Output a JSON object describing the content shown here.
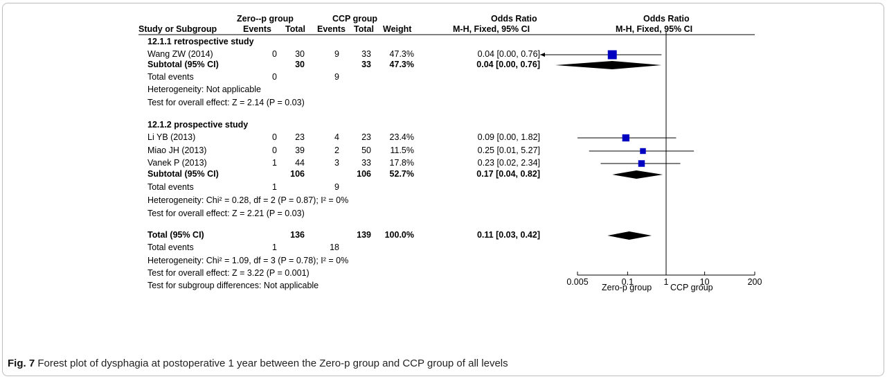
{
  "headers": {
    "group1": "Zero--p group",
    "group2": "CCP group",
    "or_num": "Odds Ratio",
    "or_plot": "Odds Ratio",
    "study": "Study or Subgroup",
    "events1": "Events",
    "total1": "Total",
    "events2": "Events",
    "total2": "Total",
    "weight": "Weight",
    "or_num_sub": "M-H, Fixed, 95% CI",
    "or_plot_sub": "M-H, Fixed, 95% CI"
  },
  "subgroups": [
    {
      "title": "12.1.1 retrospective study",
      "studies": [
        {
          "name": "Wang ZW (2014)",
          "e1": "0",
          "t1": "30",
          "e2": "9",
          "t2": "33",
          "weight": "47.3%",
          "ci": "0.04 [0.00, 0.76]"
        }
      ],
      "subtotal": {
        "label": "Subtotal (95% CI)",
        "t1": "30",
        "t2": "33",
        "weight": "47.3%",
        "ci": "0.04 [0.00, 0.76]"
      },
      "total_events": {
        "label": "Total events",
        "e1": "0",
        "e2": "9"
      },
      "heterogeneity": "Heterogeneity: Not applicable",
      "overall": "Test for overall effect: Z = 2.14 (P = 0.03)"
    },
    {
      "title": "12.1.2 prospective study",
      "studies": [
        {
          "name": "Li YB (2013)",
          "e1": "0",
          "t1": "23",
          "e2": "4",
          "t2": "23",
          "weight": "23.4%",
          "ci": "0.09 [0.00, 1.82]"
        },
        {
          "name": "Miao JH (2013)",
          "e1": "0",
          "t1": "39",
          "e2": "2",
          "t2": "50",
          "weight": "11.5%",
          "ci": "0.25 [0.01, 5.27]"
        },
        {
          "name": "Vanek P (2013)",
          "e1": "1",
          "t1": "44",
          "e2": "3",
          "t2": "33",
          "weight": "17.8%",
          "ci": "0.23 [0.02, 2.34]"
        }
      ],
      "subtotal": {
        "label": "Subtotal (95% CI)",
        "t1": "106",
        "t2": "106",
        "weight": "52.7%",
        "ci": "0.17 [0.04, 0.82]"
      },
      "total_events": {
        "label": "Total events",
        "e1": "1",
        "e2": "9"
      },
      "heterogeneity": "Heterogeneity: Chi² = 0.28, df = 2 (P = 0.87); I² = 0%",
      "overall": "Test for overall effect: Z = 2.21 (P = 0.03)"
    }
  ],
  "total": {
    "label": "Total (95% CI)",
    "t1": "136",
    "t2": "139",
    "weight": "100.0%",
    "ci": "0.11 [0.03, 0.42]",
    "events_label": "Total events",
    "e1": "1",
    "e2": "18",
    "heterogeneity": "Heterogeneity: Chi² = 1.09, df = 3 (P = 0.78); I² = 0%",
    "overall": "Test for overall effect: Z = 3.22 (P = 0.001)",
    "subgroup_diff": "Test for subgroup differences: Not applicable"
  },
  "axis": {
    "favours_left": "Zero-p group",
    "favours_right": "CCP group"
  },
  "caption": {
    "label": "Fig. 7",
    "text": "Forest plot of dysphagia at postoperative 1 year between the Zero-p group and CCP group of all levels"
  },
  "colors": {
    "marker": "#0000c0",
    "diamond": "#000000",
    "line": "#000000"
  },
  "chart_data": {
    "type": "forest",
    "scale": "log",
    "xlim": [
      0.005,
      200
    ],
    "ticks": [
      0.005,
      0.1,
      1,
      10,
      200
    ],
    "tick_labels": [
      "0.005",
      "0.1",
      "1",
      "10",
      "200"
    ],
    "null_line": 1,
    "studies": [
      {
        "name": "Wang ZW (2014)",
        "or": 0.04,
        "lo": 0.0,
        "hi": 0.76,
        "weight": 47.3,
        "clipped_left": true
      },
      {
        "name": "Li YB (2013)",
        "or": 0.09,
        "lo": 0.0,
        "hi": 1.82,
        "weight": 23.4
      },
      {
        "name": "Miao JH (2013)",
        "or": 0.25,
        "lo": 0.01,
        "hi": 5.27,
        "weight": 11.5
      },
      {
        "name": "Vanek P (2013)",
        "or": 0.23,
        "lo": 0.02,
        "hi": 2.34,
        "weight": 17.8
      }
    ],
    "diamonds": [
      {
        "name": "Subtotal 12.1.1",
        "or": 0.04,
        "lo": 0.0,
        "hi": 0.76
      },
      {
        "name": "Subtotal 12.1.2",
        "or": 0.17,
        "lo": 0.04,
        "hi": 0.82
      },
      {
        "name": "Total",
        "or": 0.11,
        "lo": 0.03,
        "hi": 0.42
      }
    ]
  }
}
